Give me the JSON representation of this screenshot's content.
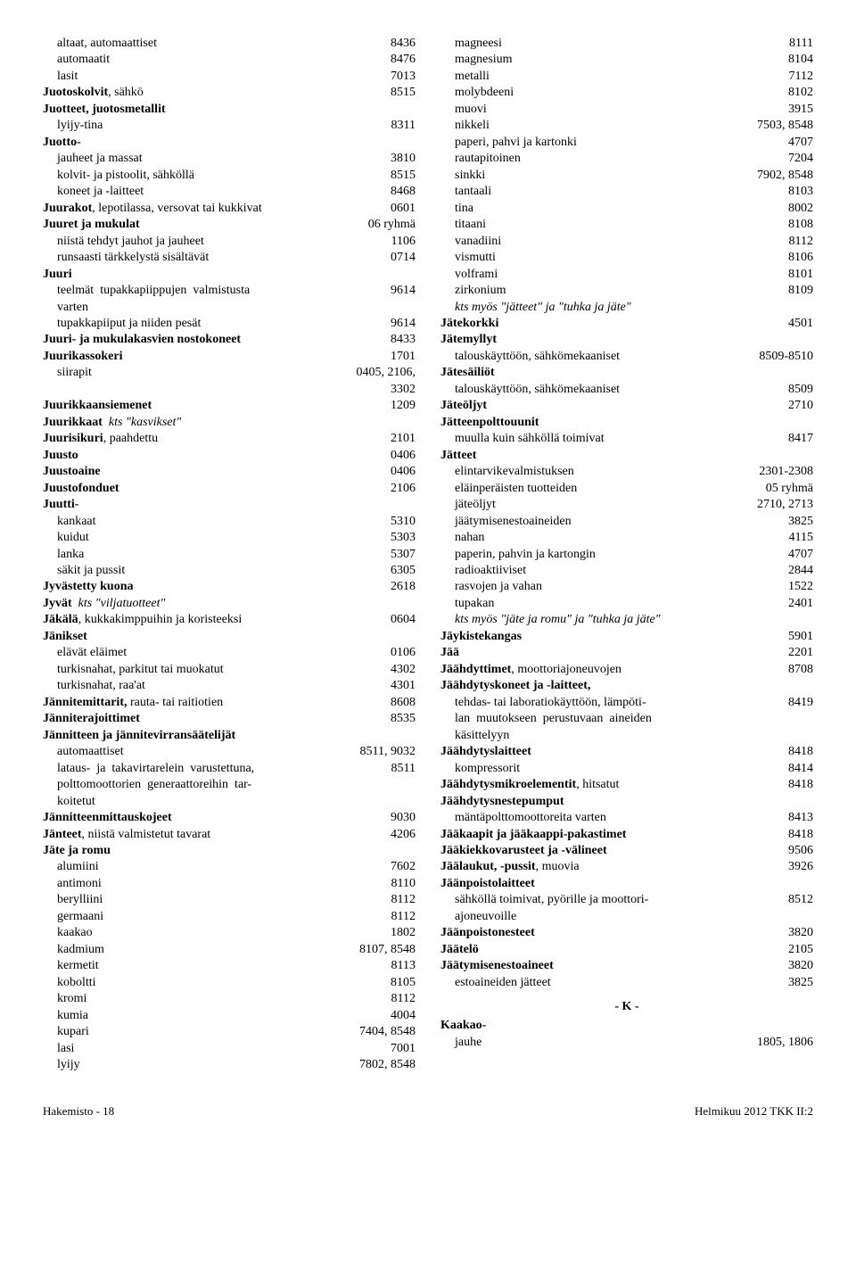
{
  "left": [
    {
      "indent": 1,
      "parts": [
        {
          "t": "altaat, automaattiset"
        }
      ],
      "val": "8436"
    },
    {
      "indent": 1,
      "parts": [
        {
          "t": "automaatit"
        }
      ],
      "val": "8476"
    },
    {
      "indent": 1,
      "parts": [
        {
          "t": "lasit"
        }
      ],
      "val": "7013"
    },
    {
      "indent": 0,
      "parts": [
        {
          "t": "Juotoskolvit",
          "b": true
        },
        {
          "t": ", sähkö"
        }
      ],
      "val": "8515"
    },
    {
      "indent": 0,
      "parts": [
        {
          "t": "Juotteet, juotosmetallit",
          "b": true
        }
      ],
      "val": ""
    },
    {
      "indent": 1,
      "parts": [
        {
          "t": "lyijy-tina"
        }
      ],
      "val": "8311"
    },
    {
      "indent": 0,
      "parts": [
        {
          "t": "Juotto-",
          "b": true
        }
      ],
      "val": ""
    },
    {
      "indent": 1,
      "parts": [
        {
          "t": "jauheet ja massat"
        }
      ],
      "val": "3810"
    },
    {
      "indent": 1,
      "parts": [
        {
          "t": "kolvit- ja pistoolit, sähköllä"
        }
      ],
      "val": "8515"
    },
    {
      "indent": 1,
      "parts": [
        {
          "t": "koneet ja -laitteet"
        }
      ],
      "val": "8468"
    },
    {
      "indent": 0,
      "parts": [
        {
          "t": "Juurakot",
          "b": true
        },
        {
          "t": ", lepotilassa, versovat tai kukkivat"
        }
      ],
      "val": "0601"
    },
    {
      "indent": 0,
      "parts": [
        {
          "t": "Juuret ja mukulat",
          "b": true
        }
      ],
      "val": "06 ryhmä"
    },
    {
      "indent": 1,
      "parts": [
        {
          "t": "niistä tehdyt jauhot ja jauheet"
        }
      ],
      "val": "1106"
    },
    {
      "indent": 1,
      "parts": [
        {
          "t": "runsaasti tärkkelystä sisältävät"
        }
      ],
      "val": "0714"
    },
    {
      "indent": 0,
      "parts": [
        {
          "t": "Juuri",
          "b": true
        }
      ],
      "val": ""
    },
    {
      "indent": 1,
      "parts": [
        {
          "t": "teelmät  tupakkapiippujen  valmistusta"
        }
      ],
      "val": "9614"
    },
    {
      "indent": 1,
      "parts": [
        {
          "t": "varten"
        }
      ],
      "val": ""
    },
    {
      "indent": 1,
      "parts": [
        {
          "t": "tupakkapiiput ja niiden pesät"
        }
      ],
      "val": "9614"
    },
    {
      "indent": 0,
      "parts": [
        {
          "t": "Juuri- ja mukulakasvien nostokoneet",
          "b": true
        }
      ],
      "val": "8433"
    },
    {
      "indent": 0,
      "parts": [
        {
          "t": "Juurikassokeri",
          "b": true
        }
      ],
      "val": "1701"
    },
    {
      "indent": 1,
      "parts": [
        {
          "t": "siirapit"
        }
      ],
      "val": "0405, 2106,"
    },
    {
      "indent": 1,
      "parts": [
        {
          "t": ""
        }
      ],
      "val": "3302"
    },
    {
      "indent": 0,
      "parts": [
        {
          "t": "Juurikkaansiemenet",
          "b": true
        }
      ],
      "val": "1209"
    },
    {
      "indent": 0,
      "parts": [
        {
          "t": "Juurikkaat",
          "b": true
        },
        {
          "t": "  "
        },
        {
          "t": "kts \"kasvikset\"",
          "i": true
        }
      ],
      "val": ""
    },
    {
      "indent": 0,
      "parts": [
        {
          "t": "Juurisikuri",
          "b": true
        },
        {
          "t": ", paahdettu"
        }
      ],
      "val": "2101"
    },
    {
      "indent": 0,
      "parts": [
        {
          "t": "Juusto",
          "b": true
        }
      ],
      "val": "0406"
    },
    {
      "indent": 0,
      "parts": [
        {
          "t": "Juustoaine",
          "b": true
        }
      ],
      "val": "0406"
    },
    {
      "indent": 0,
      "parts": [
        {
          "t": "Juustofonduet",
          "b": true
        }
      ],
      "val": "2106"
    },
    {
      "indent": 0,
      "parts": [
        {
          "t": "Juutti-",
          "b": true
        }
      ],
      "val": ""
    },
    {
      "indent": 1,
      "parts": [
        {
          "t": "kankaat"
        }
      ],
      "val": "5310"
    },
    {
      "indent": 1,
      "parts": [
        {
          "t": "kuidut"
        }
      ],
      "val": "5303"
    },
    {
      "indent": 1,
      "parts": [
        {
          "t": "lanka"
        }
      ],
      "val": "5307"
    },
    {
      "indent": 1,
      "parts": [
        {
          "t": "säkit ja pussit"
        }
      ],
      "val": "6305"
    },
    {
      "indent": 0,
      "parts": [
        {
          "t": "Jyvästetty kuona",
          "b": true
        }
      ],
      "val": "2618"
    },
    {
      "indent": 0,
      "parts": [
        {
          "t": "Jyvät",
          "b": true
        },
        {
          "t": "  "
        },
        {
          "t": "kts \"viljatuotteet\"",
          "i": true
        }
      ],
      "val": ""
    },
    {
      "indent": 0,
      "parts": [
        {
          "t": "Jäkälä",
          "b": true
        },
        {
          "t": ", kukkakimppuihin ja koristeeksi"
        }
      ],
      "val": "0604"
    },
    {
      "indent": 0,
      "parts": [
        {
          "t": "Jänikset",
          "b": true
        }
      ],
      "val": ""
    },
    {
      "indent": 1,
      "parts": [
        {
          "t": "elävät eläimet"
        }
      ],
      "val": "0106"
    },
    {
      "indent": 1,
      "parts": [
        {
          "t": "turkisnahat, parkitut tai muokatut"
        }
      ],
      "val": "4302"
    },
    {
      "indent": 1,
      "parts": [
        {
          "t": "turkisnahat, raa'at"
        }
      ],
      "val": "4301"
    },
    {
      "indent": 0,
      "parts": [
        {
          "t": "Jännitemittarit,",
          "b": true
        },
        {
          "t": " rauta- tai raitiotien"
        }
      ],
      "val": "8608"
    },
    {
      "indent": 0,
      "parts": [
        {
          "t": "Jänniterajoittimet",
          "b": true
        }
      ],
      "val": "8535"
    },
    {
      "indent": 0,
      "parts": [
        {
          "t": "Jännitteen ja jännitevirransäätelijät",
          "b": true
        }
      ],
      "val": ""
    },
    {
      "indent": 1,
      "parts": [
        {
          "t": "automaattiset"
        }
      ],
      "val": "8511, 9032"
    },
    {
      "indent": 1,
      "parts": [
        {
          "t": "lataus-  ja  takavirtarelein  varustettuna,"
        }
      ],
      "val": "8511"
    },
    {
      "indent": 1,
      "parts": [
        {
          "t": "polttomoottorien  generaattoreihin  tar-"
        }
      ],
      "val": ""
    },
    {
      "indent": 1,
      "parts": [
        {
          "t": "koitetut"
        }
      ],
      "val": ""
    },
    {
      "indent": 0,
      "parts": [
        {
          "t": "Jännitteenmittauskojeet",
          "b": true
        }
      ],
      "val": "9030"
    },
    {
      "indent": 0,
      "parts": [
        {
          "t": "Jänteet",
          "b": true
        },
        {
          "t": ", niistä valmistetut tavarat"
        }
      ],
      "val": "4206"
    },
    {
      "indent": 0,
      "parts": [
        {
          "t": "Jäte ja romu",
          "b": true
        }
      ],
      "val": ""
    },
    {
      "indent": 1,
      "parts": [
        {
          "t": "alumiini"
        }
      ],
      "val": "7602"
    },
    {
      "indent": 1,
      "parts": [
        {
          "t": "antimoni"
        }
      ],
      "val": "8110"
    },
    {
      "indent": 1,
      "parts": [
        {
          "t": "berylliini"
        }
      ],
      "val": "8112"
    },
    {
      "indent": 1,
      "parts": [
        {
          "t": "germaani"
        }
      ],
      "val": "8112"
    },
    {
      "indent": 1,
      "parts": [
        {
          "t": "kaakao"
        }
      ],
      "val": "1802"
    },
    {
      "indent": 1,
      "parts": [
        {
          "t": "kadmium"
        }
      ],
      "val": "8107, 8548"
    },
    {
      "indent": 1,
      "parts": [
        {
          "t": "kermetit"
        }
      ],
      "val": "8113"
    },
    {
      "indent": 1,
      "parts": [
        {
          "t": "koboltti"
        }
      ],
      "val": "8105"
    },
    {
      "indent": 1,
      "parts": [
        {
          "t": "kromi"
        }
      ],
      "val": "8112"
    },
    {
      "indent": 1,
      "parts": [
        {
          "t": "kumia"
        }
      ],
      "val": "4004"
    },
    {
      "indent": 1,
      "parts": [
        {
          "t": "kupari"
        }
      ],
      "val": "7404, 8548"
    },
    {
      "indent": 1,
      "parts": [
        {
          "t": "lasi"
        }
      ],
      "val": "7001"
    },
    {
      "indent": 1,
      "parts": [
        {
          "t": "lyijy"
        }
      ],
      "val": "7802, 8548"
    }
  ],
  "right": [
    {
      "indent": 1,
      "parts": [
        {
          "t": "magneesi"
        }
      ],
      "val": "8111"
    },
    {
      "indent": 1,
      "parts": [
        {
          "t": "magnesium"
        }
      ],
      "val": "8104"
    },
    {
      "indent": 1,
      "parts": [
        {
          "t": "metalli"
        }
      ],
      "val": "7112"
    },
    {
      "indent": 1,
      "parts": [
        {
          "t": "molybdeeni"
        }
      ],
      "val": "8102"
    },
    {
      "indent": 1,
      "parts": [
        {
          "t": "muovi"
        }
      ],
      "val": "3915"
    },
    {
      "indent": 1,
      "parts": [
        {
          "t": "nikkeli"
        }
      ],
      "val": "7503, 8548"
    },
    {
      "indent": 1,
      "parts": [
        {
          "t": "paperi, pahvi ja kartonki"
        }
      ],
      "val": "4707"
    },
    {
      "indent": 1,
      "parts": [
        {
          "t": "rautapitoinen"
        }
      ],
      "val": "7204"
    },
    {
      "indent": 1,
      "parts": [
        {
          "t": "sinkki"
        }
      ],
      "val": "7902, 8548"
    },
    {
      "indent": 1,
      "parts": [
        {
          "t": "tantaali"
        }
      ],
      "val": "8103"
    },
    {
      "indent": 1,
      "parts": [
        {
          "t": "tina"
        }
      ],
      "val": "8002"
    },
    {
      "indent": 1,
      "parts": [
        {
          "t": "titaani"
        }
      ],
      "val": "8108"
    },
    {
      "indent": 1,
      "parts": [
        {
          "t": "vanadiini"
        }
      ],
      "val": "8112"
    },
    {
      "indent": 1,
      "parts": [
        {
          "t": "vismutti"
        }
      ],
      "val": "8106"
    },
    {
      "indent": 1,
      "parts": [
        {
          "t": "volframi"
        }
      ],
      "val": "8101"
    },
    {
      "indent": 1,
      "parts": [
        {
          "t": "zirkonium"
        }
      ],
      "val": "8109"
    },
    {
      "indent": 1,
      "parts": [
        {
          "t": "kts myös \"jätteet\" ja \"tuhka ja jäte\"",
          "i": true
        }
      ],
      "val": ""
    },
    {
      "indent": 0,
      "parts": [
        {
          "t": "Jätekorkki",
          "b": true
        }
      ],
      "val": "4501"
    },
    {
      "indent": 0,
      "parts": [
        {
          "t": "Jätemyllyt",
          "b": true
        }
      ],
      "val": ""
    },
    {
      "indent": 1,
      "parts": [
        {
          "t": "talouskäyttöön, sähkömekaaniset"
        }
      ],
      "val": "8509-8510"
    },
    {
      "indent": 0,
      "parts": [
        {
          "t": "Jätesäiliöt",
          "b": true
        }
      ],
      "val": ""
    },
    {
      "indent": 1,
      "parts": [
        {
          "t": "talouskäyttöön, sähkömekaaniset"
        }
      ],
      "val": "8509"
    },
    {
      "indent": 0,
      "parts": [
        {
          "t": "Jäteöljyt",
          "b": true
        }
      ],
      "val": "2710"
    },
    {
      "indent": 0,
      "parts": [
        {
          "t": "Jätteenpolttouunit",
          "b": true
        }
      ],
      "val": ""
    },
    {
      "indent": 1,
      "parts": [
        {
          "t": "muulla kuin sähköllä toimivat"
        }
      ],
      "val": "8417"
    },
    {
      "indent": 0,
      "parts": [
        {
          "t": "Jätteet",
          "b": true
        }
      ],
      "val": ""
    },
    {
      "indent": 1,
      "parts": [
        {
          "t": "elintarvikevalmistuksen"
        }
      ],
      "val": "2301-2308"
    },
    {
      "indent": 1,
      "parts": [
        {
          "t": "eläinperäisten tuotteiden"
        }
      ],
      "val": "05 ryhmä"
    },
    {
      "indent": 1,
      "parts": [
        {
          "t": "jäteöljyt"
        }
      ],
      "val": "2710, 2713"
    },
    {
      "indent": 1,
      "parts": [
        {
          "t": "jäätymisenestoaineiden"
        }
      ],
      "val": "3825"
    },
    {
      "indent": 1,
      "parts": [
        {
          "t": "nahan"
        }
      ],
      "val": "4115"
    },
    {
      "indent": 1,
      "parts": [
        {
          "t": "paperin, pahvin ja kartongin"
        }
      ],
      "val": "4707"
    },
    {
      "indent": 1,
      "parts": [
        {
          "t": "radioaktiiviset"
        }
      ],
      "val": "2844"
    },
    {
      "indent": 1,
      "parts": [
        {
          "t": "rasvojen ja vahan"
        }
      ],
      "val": "1522"
    },
    {
      "indent": 1,
      "parts": [
        {
          "t": "tupakan"
        }
      ],
      "val": "2401"
    },
    {
      "indent": 1,
      "parts": [
        {
          "t": "kts myös \"jäte ja romu\" ja \"tuhka ja jäte\"",
          "i": true
        }
      ],
      "val": ""
    },
    {
      "indent": 0,
      "parts": [
        {
          "t": "Jäykistekangas",
          "b": true
        }
      ],
      "val": "5901"
    },
    {
      "indent": 0,
      "parts": [
        {
          "t": "Jää",
          "b": true
        }
      ],
      "val": "2201"
    },
    {
      "indent": 0,
      "parts": [
        {
          "t": "Jäähdyttimet",
          "b": true
        },
        {
          "t": ", moottoriajoneuvojen"
        }
      ],
      "val": "8708"
    },
    {
      "indent": 0,
      "parts": [
        {
          "t": "Jäähdytyskoneet ja -laitteet,",
          "b": true
        }
      ],
      "val": ""
    },
    {
      "indent": 1,
      "parts": [
        {
          "t": "tehdas- tai laboratiokäyttöön, lämpöti-"
        }
      ],
      "val": "8419"
    },
    {
      "indent": 1,
      "parts": [
        {
          "t": "lan  muutokseen  perustuvaan  aineiden"
        }
      ],
      "val": ""
    },
    {
      "indent": 1,
      "parts": [
        {
          "t": "käsittelyyn"
        }
      ],
      "val": ""
    },
    {
      "indent": 0,
      "parts": [
        {
          "t": "Jäähdytyslaitteet",
          "b": true
        }
      ],
      "val": "8418"
    },
    {
      "indent": 1,
      "parts": [
        {
          "t": "kompressorit"
        }
      ],
      "val": "8414"
    },
    {
      "indent": 0,
      "parts": [
        {
          "t": "Jäähdytysmikroelementit",
          "b": true
        },
        {
          "t": ", hitsatut"
        }
      ],
      "val": "8418"
    },
    {
      "indent": 0,
      "parts": [
        {
          "t": "Jäähdytysnestepumput",
          "b": true
        }
      ],
      "val": ""
    },
    {
      "indent": 1,
      "parts": [
        {
          "t": "mäntäpolttomoottoreita varten"
        }
      ],
      "val": "8413"
    },
    {
      "indent": 0,
      "parts": [
        {
          "t": "Jääkaapit ja jääkaappi-pakastimet",
          "b": true
        }
      ],
      "val": "8418"
    },
    {
      "indent": 0,
      "parts": [
        {
          "t": "Jääkiekkovarusteet ja -välineet",
          "b": true
        }
      ],
      "val": "9506"
    },
    {
      "indent": 0,
      "parts": [
        {
          "t": "Jäälaukut, -pussit",
          "b": true
        },
        {
          "t": ", muovia"
        }
      ],
      "val": "3926"
    },
    {
      "indent": 0,
      "parts": [
        {
          "t": "Jäänpoistolaitteet",
          "b": true
        }
      ],
      "val": ""
    },
    {
      "indent": 1,
      "parts": [
        {
          "t": "sähköllä toimivat, pyörille ja moottori-"
        }
      ],
      "val": "8512"
    },
    {
      "indent": 1,
      "parts": [
        {
          "t": "ajoneuvoille"
        }
      ],
      "val": ""
    },
    {
      "indent": 0,
      "parts": [
        {
          "t": "Jäänpoistonesteet",
          "b": true
        }
      ],
      "val": "3820"
    },
    {
      "indent": 0,
      "parts": [
        {
          "t": "Jäätelö",
          "b": true
        }
      ],
      "val": "2105"
    },
    {
      "indent": 0,
      "parts": [
        {
          "t": "Jäätymisenestoaineet",
          "b": true
        }
      ],
      "val": "3820"
    },
    {
      "indent": 1,
      "parts": [
        {
          "t": "estoaineiden jätteet"
        }
      ],
      "val": "3825"
    }
  ],
  "section_header": "- K -",
  "right_after_header": [
    {
      "indent": 0,
      "parts": [
        {
          "t": "Kaakao-",
          "b": true
        }
      ],
      "val": ""
    },
    {
      "indent": 1,
      "parts": [
        {
          "t": "jauhe"
        }
      ],
      "val": "1805, 1806"
    }
  ],
  "footer_left": "Hakemisto - 18",
  "footer_right": "Helmikuu 2012 TKK II:2"
}
